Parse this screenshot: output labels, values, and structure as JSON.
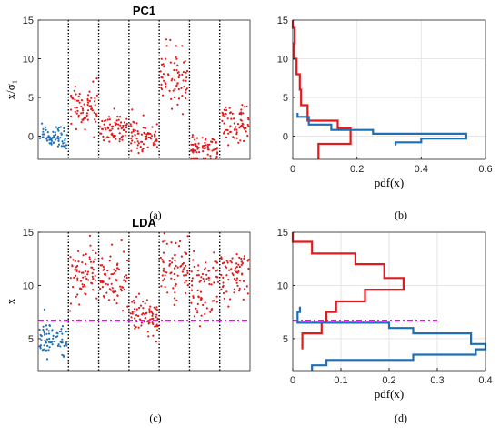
{
  "colors": {
    "blue": "#1f6fb5",
    "red": "#e31a1c",
    "magenta": "#ff00ff",
    "grid": "#e6e6e6",
    "axis": "#262626"
  },
  "chart_data": [
    {
      "id": "a",
      "type": "scatter",
      "title": "PC1",
      "caption": "(a)",
      "ylabel": "x/σ₁",
      "xlabel": "",
      "ylim": [
        -3,
        15
      ],
      "yticks": [
        0,
        5,
        10,
        15
      ],
      "grid": false,
      "segment_separators": "dotted vertical lines",
      "segments": [
        {
          "color": "blue",
          "mean": 0.0,
          "sd": 0.8
        },
        {
          "color": "red",
          "mean": 3.5,
          "sd": 1.5
        },
        {
          "color": "red",
          "mean": 1.0,
          "sd": 1.0
        },
        {
          "color": "red",
          "mean": 0.0,
          "sd": 0.9
        },
        {
          "color": "red",
          "mean": 8.0,
          "sd": 2.2
        },
        {
          "color": "red",
          "mean": -1.5,
          "sd": 0.8
        },
        {
          "color": "red",
          "mean": 1.5,
          "sd": 1.3
        }
      ]
    },
    {
      "id": "b",
      "type": "line",
      "caption": "(b)",
      "xlabel": "pdf(x)",
      "ylabel": "",
      "xlim": [
        0,
        0.6
      ],
      "ylim": [
        -3,
        15
      ],
      "xticks": [
        0,
        0.2,
        0.4,
        0.6
      ],
      "yticks": [
        0,
        5,
        10,
        15
      ],
      "grid": true,
      "series": [
        {
          "color": "red",
          "points": [
            [
              0.0,
              15
            ],
            [
              0.0,
              14
            ],
            [
              0.006,
              14
            ],
            [
              0.006,
              12
            ],
            [
              0.004,
              12
            ],
            [
              0.004,
              10
            ],
            [
              0.012,
              10
            ],
            [
              0.012,
              8
            ],
            [
              0.022,
              8
            ],
            [
              0.022,
              6
            ],
            [
              0.026,
              6
            ],
            [
              0.026,
              4
            ],
            [
              0.046,
              4
            ],
            [
              0.046,
              2
            ],
            [
              0.14,
              2
            ],
            [
              0.14,
              1
            ],
            [
              0.18,
              1
            ],
            [
              0.18,
              -1
            ],
            [
              0.08,
              -1
            ],
            [
              0.08,
              -3
            ]
          ]
        },
        {
          "color": "blue",
          "points": [
            [
              0.015,
              3
            ],
            [
              0.015,
              2.5
            ],
            [
              0.05,
              2.5
            ],
            [
              0.05,
              1.5
            ],
            [
              0.12,
              1.5
            ],
            [
              0.12,
              0.8
            ],
            [
              0.25,
              0.8
            ],
            [
              0.25,
              0.3
            ],
            [
              0.54,
              0.3
            ],
            [
              0.54,
              -0.3
            ],
            [
              0.4,
              -0.3
            ],
            [
              0.4,
              -0.8
            ],
            [
              0.32,
              -0.8
            ],
            [
              0.32,
              -1.2
            ]
          ]
        }
      ]
    },
    {
      "id": "c",
      "type": "scatter",
      "title": "LDA",
      "caption": "(c)",
      "ylabel": "x",
      "xlabel": "",
      "ylim": [
        2,
        15
      ],
      "yticks": [
        5,
        10,
        15
      ],
      "grid": false,
      "threshold": 6.7,
      "segment_separators": "dotted vertical lines",
      "segments": [
        {
          "color": "blue",
          "mean": 4.8,
          "sd": 0.9
        },
        {
          "color": "red",
          "mean": 11.0,
          "sd": 1.5
        },
        {
          "color": "red",
          "mean": 10.5,
          "sd": 1.4
        },
        {
          "color": "red",
          "mean": 6.8,
          "sd": 0.9
        },
        {
          "color": "red",
          "mean": 11.5,
          "sd": 1.6
        },
        {
          "color": "red",
          "mean": 10.0,
          "sd": 1.8
        },
        {
          "color": "red",
          "mean": 11.0,
          "sd": 1.2
        }
      ]
    },
    {
      "id": "d",
      "type": "line",
      "caption": "(d)",
      "xlabel": "pdf(x)",
      "ylabel": "",
      "xlim": [
        0,
        0.4
      ],
      "ylim": [
        2,
        15
      ],
      "xticks": [
        0,
        0.1,
        0.2,
        0.3,
        0.4
      ],
      "yticks": [
        5,
        10,
        15
      ],
      "grid": true,
      "threshold": {
        "y": 6.7,
        "x_from": 0,
        "x_to": 0.3
      },
      "series": [
        {
          "color": "red",
          "points": [
            [
              0.0,
              15
            ],
            [
              0.0,
              14.1
            ],
            [
              0.04,
              14.1
            ],
            [
              0.04,
              13
            ],
            [
              0.13,
              13
            ],
            [
              0.13,
              12
            ],
            [
              0.19,
              12
            ],
            [
              0.19,
              10.7
            ],
            [
              0.23,
              10.7
            ],
            [
              0.23,
              9.6
            ],
            [
              0.15,
              9.6
            ],
            [
              0.15,
              8.5
            ],
            [
              0.09,
              8.5
            ],
            [
              0.09,
              7.5
            ],
            [
              0.07,
              7.5
            ],
            [
              0.07,
              6.5
            ],
            [
              0.06,
              6.5
            ],
            [
              0.06,
              5.5
            ],
            [
              0.02,
              5.5
            ],
            [
              0.02,
              4
            ]
          ]
        },
        {
          "color": "blue",
          "points": [
            [
              0.015,
              8
            ],
            [
              0.015,
              7.5
            ],
            [
              0.01,
              7.5
            ],
            [
              0.01,
              6.5
            ],
            [
              0.2,
              6.5
            ],
            [
              0.2,
              6.0
            ],
            [
              0.25,
              6.0
            ],
            [
              0.25,
              5.5
            ],
            [
              0.37,
              5.5
            ],
            [
              0.37,
              4.5
            ],
            [
              0.4,
              4.5
            ],
            [
              0.4,
              4.0
            ],
            [
              0.38,
              4.0
            ],
            [
              0.38,
              3.5
            ],
            [
              0.25,
              3.5
            ],
            [
              0.25,
              3.0
            ],
            [
              0.07,
              3.0
            ],
            [
              0.07,
              2.5
            ],
            [
              0.04,
              2.5
            ],
            [
              0.04,
              2
            ]
          ]
        }
      ]
    }
  ]
}
